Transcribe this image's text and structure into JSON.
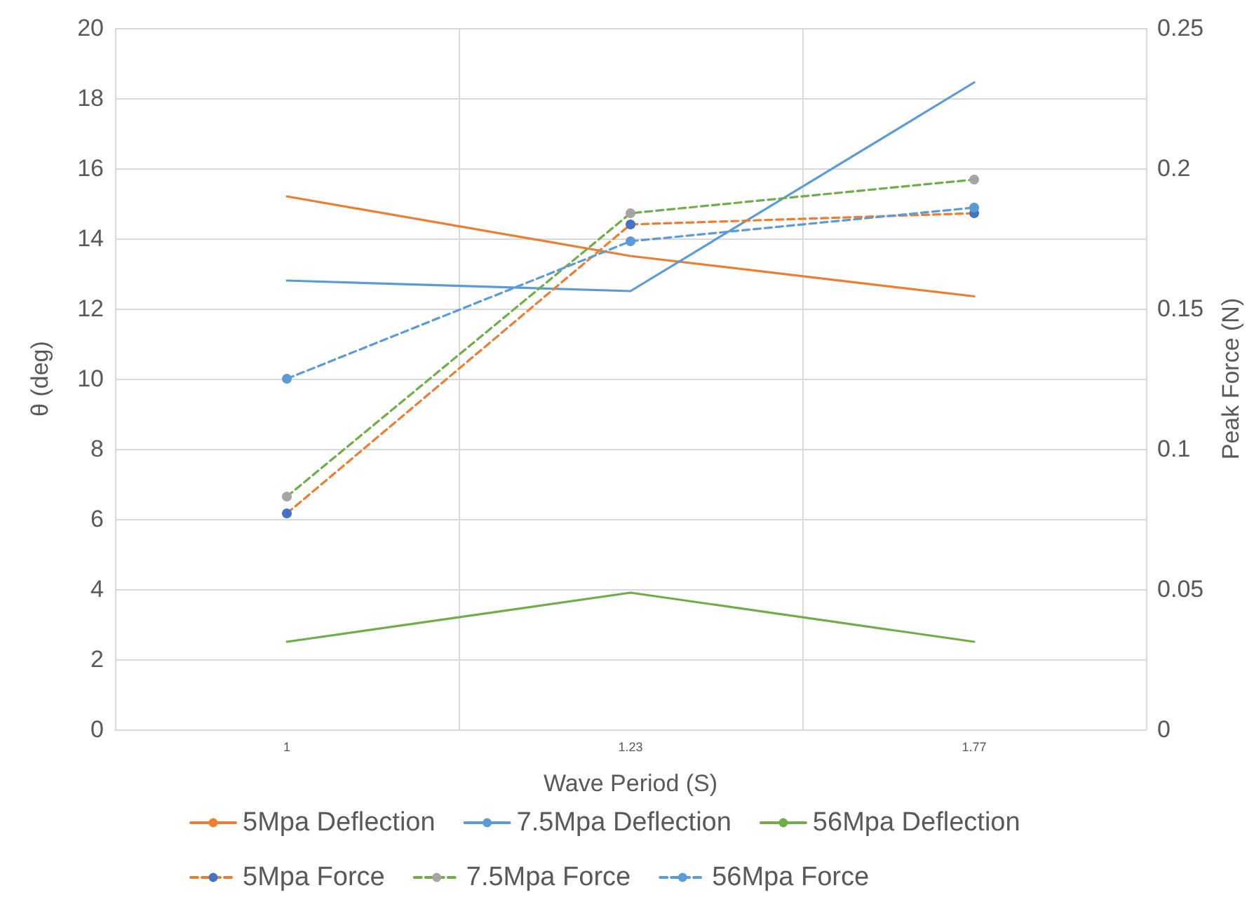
{
  "chart_data": {
    "type": "line",
    "xlabel": "Wave Period (S)",
    "ylabel": "θ (deg)",
    "y2label": "Peak Force (N)",
    "categories": [
      "1",
      "1.23",
      "1.77"
    ],
    "series": [
      {
        "name": "5Mpa Deflection",
        "color": "#ed7d31",
        "values": [
          15.2,
          13.5,
          12.35
        ],
        "line_style": "solid",
        "marker": "none"
      },
      {
        "name": "7.5Mpa Deflection",
        "color": "#5b9bd5",
        "values": [
          12.8,
          12.5,
          18.45
        ],
        "line_style": "solid",
        "marker": "none"
      },
      {
        "name": "56Mpa Deflection",
        "color": "#70ad47",
        "values": [
          2.5,
          3.9,
          2.5
        ],
        "line_style": "solid",
        "marker": "none"
      },
      {
        "name": "5Mpa Force",
        "color": "#ed7d31",
        "colors": [
          "#4472c4",
          "#4472c4",
          "#4472c4"
        ],
        "values": [
          0.077,
          0.18,
          0.184
        ],
        "axis": "y2",
        "line_style": "dashed",
        "marker": "circle"
      },
      {
        "name": "7.5Mpa Force",
        "color": "#70ad47",
        "colors": [
          "#a5a5a5",
          "#a5a5a5",
          "#a5a5a5"
        ],
        "values": [
          0.083,
          0.184,
          0.196
        ],
        "axis": "y2",
        "line_style": "dashed",
        "marker": "circle"
      },
      {
        "name": "56Mpa Force",
        "color": "#5b9bd5",
        "colors": [
          "#5b9bd5",
          "#5b9bd5",
          "#5b9bd5"
        ],
        "values": [
          0.125,
          0.174,
          0.186
        ],
        "axis": "y2",
        "line_style": "dashed",
        "marker": "circle"
      }
    ],
    "ylim": [
      0,
      20
    ],
    "yticks": [
      0,
      2,
      4,
      6,
      8,
      10,
      12,
      14,
      16,
      18,
      20
    ],
    "y2lim": [
      0,
      0.25
    ],
    "y2ticks": [
      0,
      0.05,
      0.1,
      0.15,
      0.2,
      0.25
    ],
    "grid": true,
    "legend": "bottom"
  }
}
